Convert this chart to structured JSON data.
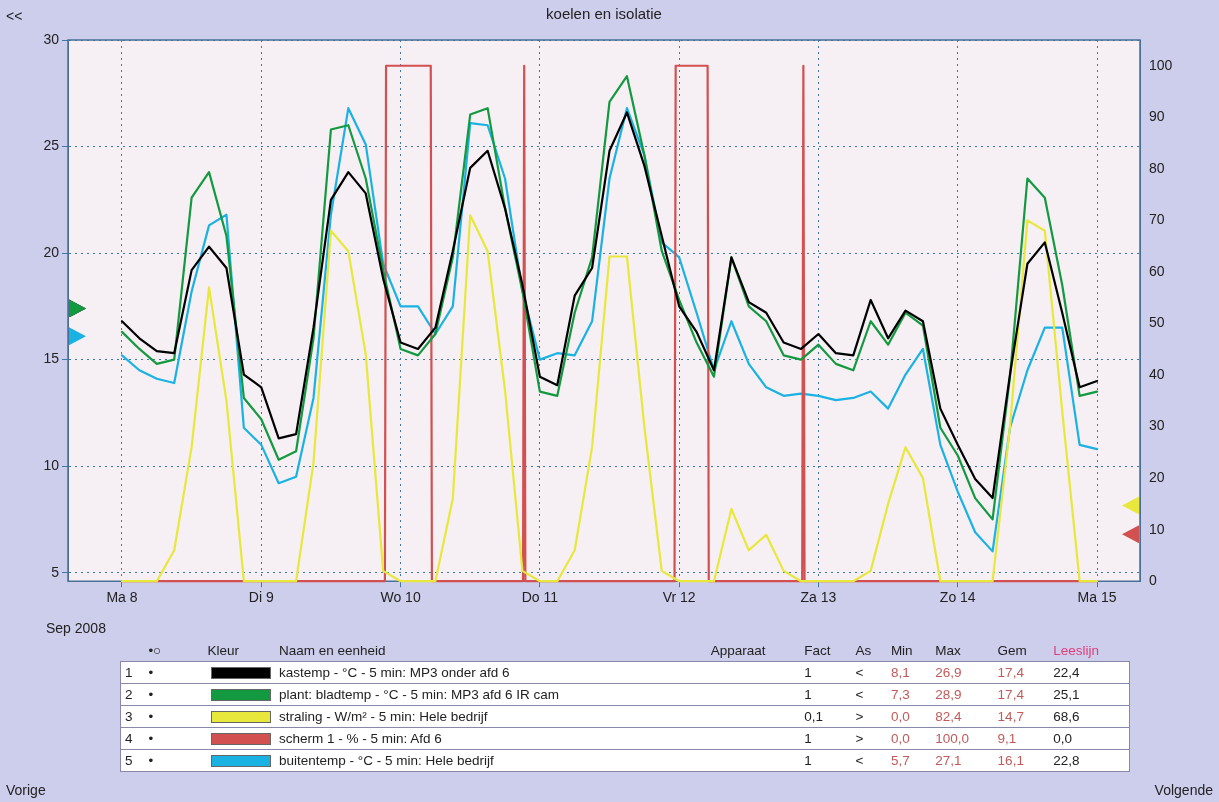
{
  "chart_data": {
    "type": "line",
    "title": "koelen en isolatie",
    "x": [
      "2008-09-08T00:00",
      "2008-09-08T03:00",
      "2008-09-08T06:00",
      "2008-09-08T09:00",
      "2008-09-08T12:00",
      "2008-09-08T15:00",
      "2008-09-08T18:00",
      "2008-09-08T21:00",
      "2008-09-09T00:00",
      "2008-09-09T03:00",
      "2008-09-09T06:00",
      "2008-09-09T09:00",
      "2008-09-09T12:00",
      "2008-09-09T15:00",
      "2008-09-09T18:00",
      "2008-09-09T21:00",
      "2008-09-10T00:00",
      "2008-09-10T03:00",
      "2008-09-10T06:00",
      "2008-09-10T09:00",
      "2008-09-10T12:00",
      "2008-09-10T15:00",
      "2008-09-10T18:00",
      "2008-09-10T21:00",
      "2008-09-11T00:00",
      "2008-09-11T03:00",
      "2008-09-11T06:00",
      "2008-09-11T09:00",
      "2008-09-11T12:00",
      "2008-09-11T15:00",
      "2008-09-11T18:00",
      "2008-09-11T21:00",
      "2008-09-12T00:00",
      "2008-09-12T03:00",
      "2008-09-12T06:00",
      "2008-09-12T09:00",
      "2008-09-12T12:00",
      "2008-09-12T15:00",
      "2008-09-12T18:00",
      "2008-09-12T21:00",
      "2008-09-13T00:00",
      "2008-09-13T03:00",
      "2008-09-13T06:00",
      "2008-09-13T09:00",
      "2008-09-13T12:00",
      "2008-09-13T15:00",
      "2008-09-13T18:00",
      "2008-09-13T21:00",
      "2008-09-14T00:00",
      "2008-09-14T03:00",
      "2008-09-14T06:00",
      "2008-09-14T09:00",
      "2008-09-14T12:00",
      "2008-09-14T15:00",
      "2008-09-14T18:00",
      "2008-09-14T21:00",
      "2008-09-15T00:00"
    ],
    "series": [
      {
        "name": "kastemp - °C - 5 min: MP3 onder afd 6",
        "color": "#000000",
        "values": [
          16.8,
          16.0,
          15.4,
          15.3,
          19.2,
          20.3,
          19.3,
          14.3,
          13.7,
          11.3,
          11.5,
          16.5,
          22.5,
          23.8,
          22.8,
          18.8,
          15.8,
          15.5,
          16.5,
          20.1,
          24.0,
          24.8,
          22.1,
          18.5,
          14.2,
          13.8,
          18.0,
          19.3,
          24.8,
          26.6,
          24.1,
          20.8,
          17.5,
          16.3,
          14.5,
          19.8,
          17.7,
          17.2,
          15.8,
          15.5,
          16.2,
          15.3,
          15.2,
          17.8,
          16.0,
          17.3,
          16.8,
          12.7,
          11.0,
          9.4,
          8.5,
          14.3,
          19.5,
          20.5,
          17.2,
          13.7,
          14.0
        ]
      },
      {
        "name": "plant: bladtemp - °C - 5 min: MP3 afd 6 IR cam",
        "color": "#13993f",
        "values": [
          16.3,
          15.5,
          14.8,
          15.0,
          22.6,
          23.8,
          20.8,
          13.2,
          12.2,
          10.3,
          10.7,
          16.0,
          25.8,
          26.0,
          23.5,
          19.2,
          15.5,
          15.2,
          16.2,
          19.8,
          26.5,
          26.8,
          22.1,
          18.2,
          13.5,
          13.3,
          17.2,
          19.8,
          27.1,
          28.3,
          24.6,
          20.1,
          17.8,
          15.8,
          14.2,
          19.8,
          17.5,
          16.8,
          15.2,
          15.0,
          15.7,
          14.8,
          14.5,
          16.8,
          15.7,
          17.2,
          16.6,
          11.8,
          10.5,
          8.5,
          7.5,
          14.2,
          23.5,
          22.6,
          18.5,
          13.3,
          13.5
        ]
      },
      {
        "name": "straling - W/m² - 5 min: Hele bedrijf",
        "color": "#e8e83c",
        "axis": "y2",
        "values": [
          0,
          0,
          0,
          6,
          26,
          57,
          35,
          0,
          0,
          0,
          0,
          23,
          68,
          64,
          44,
          2,
          0,
          0,
          0,
          16,
          71,
          64,
          37,
          2,
          0,
          0,
          6,
          26,
          63,
          63,
          30,
          2,
          0,
          0,
          0,
          14,
          6,
          9,
          2,
          0,
          0,
          0,
          0,
          2,
          15,
          26,
          20,
          0,
          0,
          0,
          0,
          30,
          70,
          68,
          33,
          0,
          0
        ]
      },
      {
        "name": "scherm 1 - % - 5 min: Afd 6",
        "color": "#d25050",
        "axis": "y2",
        "x": [
          "2008-09-08T00:00",
          "2008-09-09T21:18",
          "2008-09-09T21:30",
          "2008-09-10T05:12",
          "2008-09-10T05:24",
          "2008-09-10T21:06",
          "2008-09-10T21:18",
          "2008-09-10T21:30",
          "2008-09-11T23:12",
          "2008-09-11T23:24",
          "2008-09-12T04:54",
          "2008-09-12T05:06",
          "2008-09-12T21:12",
          "2008-09-12T21:24",
          "2008-09-12T21:36",
          "2008-09-15T00:00"
        ],
        "values": [
          0,
          0,
          100,
          100,
          0,
          0,
          100,
          0,
          0,
          100,
          100,
          0,
          0,
          100,
          0,
          0
        ]
      },
      {
        "name": "buitentemp - °C - 5 min: Hele bedrijf",
        "color": "#1ab2e2",
        "values": [
          15.2,
          14.5,
          14.1,
          13.9,
          18.2,
          21.3,
          21.8,
          11.8,
          11.0,
          9.2,
          9.5,
          13.2,
          21.8,
          26.8,
          25.1,
          19.5,
          17.5,
          17.5,
          16.2,
          17.5,
          26.1,
          26.0,
          23.5,
          18.2,
          15.0,
          15.3,
          15.2,
          16.8,
          23.5,
          26.8,
          24.6,
          20.5,
          19.8,
          17.2,
          14.5,
          16.8,
          14.8,
          13.7,
          13.3,
          13.4,
          13.3,
          13.1,
          13.2,
          13.5,
          12.7,
          14.3,
          15.5,
          11.0,
          8.8,
          6.9,
          6.0,
          11.8,
          14.5,
          16.5,
          16.5,
          11.0,
          10.8
        ]
      }
    ],
    "xlim": [
      "2008-09-07T14:42",
      "2008-09-15T07:24"
    ],
    "xticks": [
      {
        "value": "2008-09-08",
        "label": "Ma 8"
      },
      {
        "value": "2008-09-09",
        "label": "Di 9"
      },
      {
        "value": "2008-09-10",
        "label": "Wo 10"
      },
      {
        "value": "2008-09-11",
        "label": "Do 11"
      },
      {
        "value": "2008-09-12",
        "label": "Vr 12"
      },
      {
        "value": "2008-09-13",
        "label": "Za 13"
      },
      {
        "value": "2008-09-14",
        "label": "Zo 14"
      },
      {
        "value": "2008-09-15",
        "label": "Ma 15"
      }
    ],
    "ylim": [
      4.6,
      30
    ],
    "yticks": [
      5,
      10,
      15,
      20,
      25,
      30
    ],
    "y2lim": [
      0,
      105
    ],
    "y2ticks": [
      0,
      10,
      20,
      30,
      40,
      50,
      60,
      70,
      80,
      90,
      100
    ],
    "grid": true,
    "legend": "bottom",
    "marker": "none",
    "line_style": "solid",
    "annotations": [
      "Sep 2008",
      "<<",
      "Vorige",
      "Volgende",
      "•○",
      "Kleur",
      "Naam en eenheid",
      "Apparaat",
      "Fact",
      "As",
      "Min",
      "Max",
      "Gem",
      "Leeslijn",
      "1",
      "•",
      "1",
      "<",
      "8,1",
      "26,9",
      "17,4",
      "22,4",
      "2",
      "•",
      "1",
      "<",
      "7,3",
      "28,9",
      "17,4",
      "25,1",
      "3",
      "•",
      "0,1",
      ">",
      "0,0",
      "82,4",
      "14,7",
      "68,6",
      "4",
      "•",
      "1",
      ">",
      "0,0",
      "100,0",
      "9,1",
      "0,0",
      "5",
      "•",
      "1",
      "<",
      "5,7",
      "27,1",
      "16,1",
      "22,8"
    ]
  }
}
